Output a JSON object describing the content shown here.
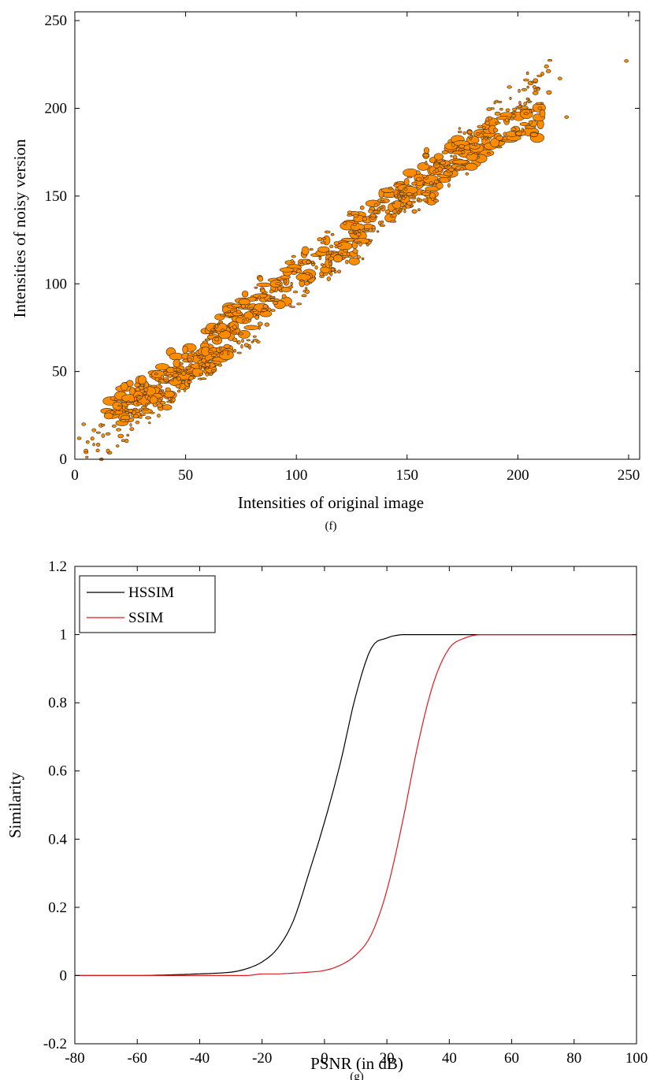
{
  "chart_data": [
    {
      "type": "scatter",
      "caption": "(f)",
      "xlabel": "Intensities of original image",
      "ylabel": "Intensities of noisy version",
      "xlim": [
        0,
        255
      ],
      "ylim": [
        0,
        255
      ],
      "xticks": [
        0,
        50,
        100,
        150,
        200,
        250
      ],
      "yticks": [
        0,
        50,
        100,
        150,
        200,
        250
      ],
      "grid": false,
      "colors": {
        "fill": "#ff8c00",
        "edge": "#3a2a10"
      },
      "trend": {
        "slope": 1.0,
        "intercept": 0,
        "spread": 8
      },
      "cloud_points": [
        [
          20,
          28
        ],
        [
          25,
          35
        ],
        [
          30,
          34
        ],
        [
          35,
          38
        ],
        [
          40,
          42
        ],
        [
          45,
          44
        ],
        [
          50,
          55
        ],
        [
          55,
          58
        ],
        [
          60,
          62
        ],
        [
          65,
          68
        ],
        [
          70,
          78
        ],
        [
          75,
          82
        ],
        [
          80,
          88
        ],
        [
          90,
          96
        ],
        [
          100,
          105
        ],
        [
          110,
          112
        ],
        [
          120,
          120
        ],
        [
          130,
          132
        ],
        [
          140,
          145
        ],
        [
          150,
          152
        ],
        [
          155,
          155
        ],
        [
          160,
          162
        ],
        [
          165,
          168
        ],
        [
          170,
          170
        ],
        [
          175,
          175
        ],
        [
          180,
          180
        ],
        [
          190,
          185
        ],
        [
          200,
          190
        ],
        [
          205,
          192
        ]
      ],
      "outliers": [
        [
          249,
          227
        ],
        [
          219,
          217
        ],
        [
          222,
          195
        ],
        [
          210,
          200
        ],
        [
          2,
          12
        ],
        [
          5,
          5
        ],
        [
          12,
          0
        ],
        [
          4,
          20
        ]
      ]
    },
    {
      "type": "line",
      "caption": "(g)",
      "xlabel": "PSNR (in dB)",
      "ylabel": "Similarity",
      "xlim": [
        -80,
        100
      ],
      "ylim": [
        -0.2,
        1.2
      ],
      "xticks": [
        -80,
        -60,
        -40,
        -20,
        0,
        20,
        40,
        60,
        80,
        100
      ],
      "yticks": [
        -0.2,
        0,
        0.2,
        0.4,
        0.6,
        0.8,
        1,
        1.2
      ],
      "yticklabels": [
        "-0.2",
        "0",
        "0.2",
        "0.4",
        "0.6",
        "0.8",
        "1",
        "1.2"
      ],
      "grid": false,
      "legend_position": "top-left",
      "x": [
        -80,
        -60,
        -40,
        -30,
        -25,
        -20,
        -15,
        -10,
        -5,
        0,
        5,
        10,
        15,
        20,
        25,
        30,
        35,
        40,
        45,
        50,
        60,
        80,
        100
      ],
      "series": [
        {
          "name": "HSSIM",
          "color": "#000000",
          "values": [
            0.0,
            0.0,
            0.005,
            0.01,
            0.02,
            0.04,
            0.08,
            0.16,
            0.3,
            0.45,
            0.62,
            0.82,
            0.96,
            0.99,
            1.0,
            1.0,
            1.0,
            1.0,
            1.0,
            1.0,
            1.0,
            1.0,
            1.0
          ]
        },
        {
          "name": "SSIM",
          "color": "#e0191e",
          "values": [
            0.0,
            0.0,
            0.0,
            0.0,
            0.0,
            0.005,
            0.005,
            0.007,
            0.01,
            0.015,
            0.03,
            0.06,
            0.12,
            0.25,
            0.45,
            0.68,
            0.86,
            0.96,
            0.99,
            1.0,
            1.0,
            1.0,
            1.0
          ]
        }
      ]
    }
  ]
}
